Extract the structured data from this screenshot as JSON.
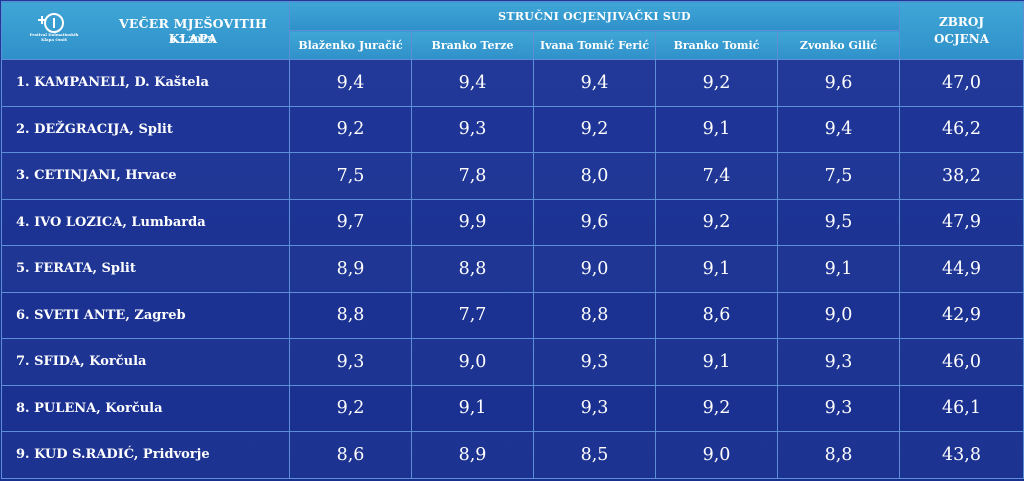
{
  "header": {
    "event_title": "VEČER MJEŠOVITIH KLAPA",
    "event_date": "6.7.2025.",
    "logo_text": "Festival Dalmatinskih Klapa Omiš",
    "jury_title": "STRUČNI OCJENJIVAČKI SUD",
    "total_title_line1": "ZBROJ",
    "total_title_line2": "OCJENA"
  },
  "judges": [
    "Blaženko Juračić",
    "Branko Terze",
    "Ivana Tomić Ferić",
    "Branko Tomić",
    "Zvonko Gilić"
  ],
  "rows": [
    {
      "name": "1.  KAMPANELI, D. Kaštela",
      "scores": [
        "9,4",
        "9,4",
        "9,4",
        "9,2",
        "9,6"
      ],
      "total": "47,0"
    },
    {
      "name": "2.  DEŽGRACIJA, Split",
      "scores": [
        "9,2",
        "9,3",
        "9,2",
        "9,1",
        "9,4"
      ],
      "total": "46,2"
    },
    {
      "name": "3.  CETINJANI, Hrvace",
      "scores": [
        "7,5",
        "7,8",
        "8,0",
        "7,4",
        "7,5"
      ],
      "total": "38,2"
    },
    {
      "name": "4.  IVO LOZICA, Lumbarda",
      "scores": [
        "9,7",
        "9,9",
        "9,6",
        "9,2",
        "9,5"
      ],
      "total": "47,9"
    },
    {
      "name": "5.  FERATA, Split",
      "scores": [
        "8,9",
        "8,8",
        "9,0",
        "9,1",
        "9,1"
      ],
      "total": "44,9"
    },
    {
      "name": "6.  SVETI ANTE, Zagreb",
      "scores": [
        "8,8",
        "7,7",
        "8,8",
        "8,6",
        "9,0"
      ],
      "total": "42,9"
    },
    {
      "name": "7.  SFIDA, Korčula",
      "scores": [
        "9,3",
        "9,0",
        "9,3",
        "9,1",
        "9,3"
      ],
      "total": "46,0"
    },
    {
      "name": "8.  PULENA, Korčula",
      "scores": [
        "9,2",
        "9,1",
        "9,3",
        "9,2",
        "9,3"
      ],
      "total": "46,1"
    },
    {
      "name": "9.  KUD S.RADIĆ, Pridvorje",
      "scores": [
        "8,6",
        "8,9",
        "8,5",
        "9,0",
        "8,8"
      ],
      "total": "43,8"
    }
  ]
}
